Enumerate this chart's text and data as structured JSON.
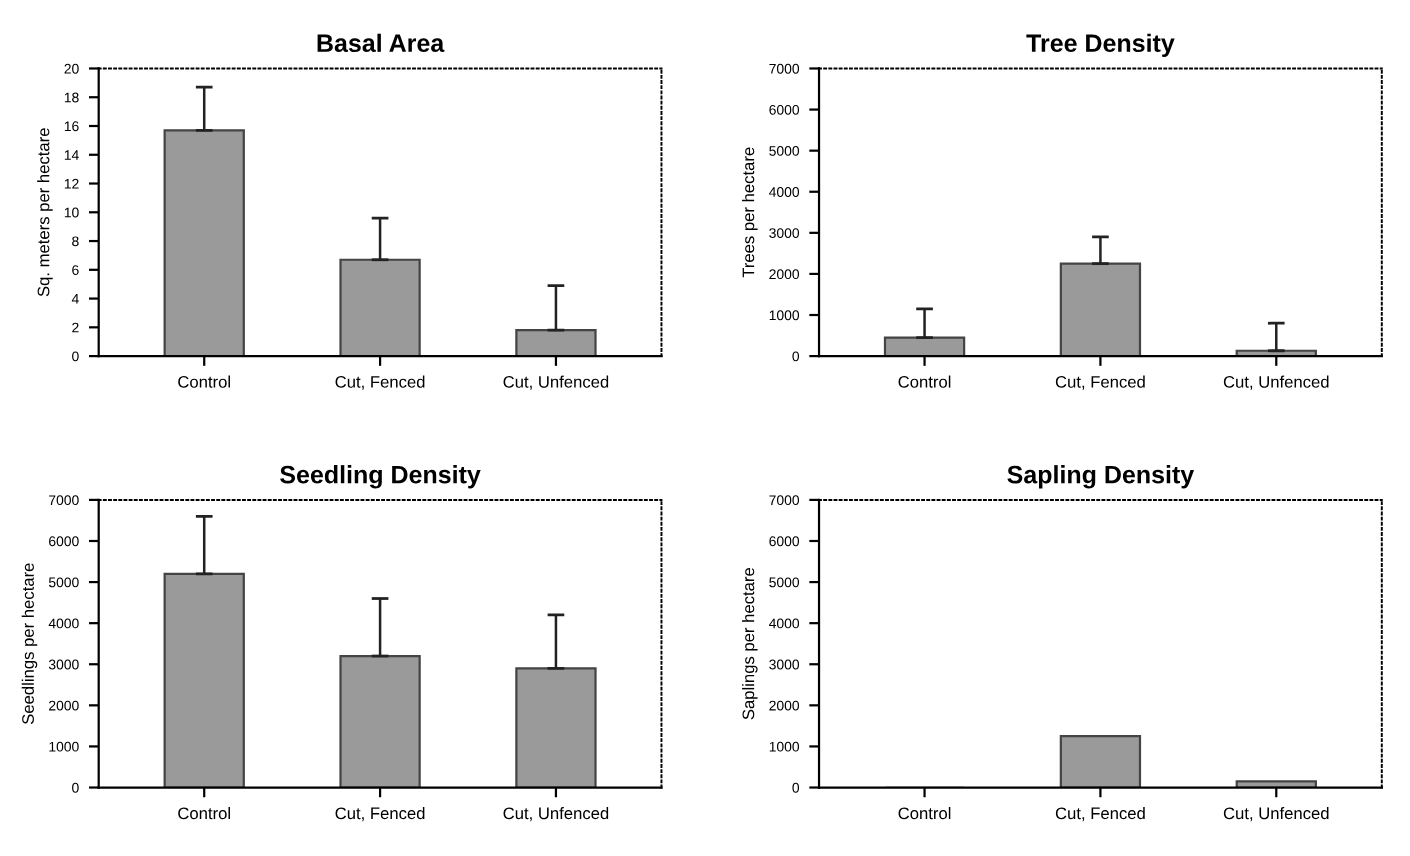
{
  "chart_data": [
    {
      "type": "bar",
      "title": "Basal Area",
      "ylabel": "Sq. meters per hectare",
      "categories": [
        "Control",
        "Cut, Fenced",
        "Cut, Unfenced"
      ],
      "values": [
        15.7,
        6.7,
        1.8
      ],
      "errors": [
        [
          15.7,
          18.7
        ],
        [
          6.7,
          9.6
        ],
        [
          1.8,
          4.9
        ]
      ],
      "color": "#9a9a9a",
      "ylim": [
        0,
        20
      ],
      "yticks": [
        0,
        2,
        4,
        6,
        8,
        10,
        12,
        14,
        16,
        18,
        20
      ]
    },
    {
      "type": "bar",
      "title": "Tree Density",
      "ylabel": "Trees per hectare",
      "categories": [
        "Control",
        "Cut, Fenced",
        "Cut, Unfenced"
      ],
      "values": [
        450,
        2250,
        130
      ],
      "errors": [
        [
          450,
          1150
        ],
        [
          2250,
          2900
        ],
        [
          130,
          800
        ]
      ],
      "color": "#9a9a9a",
      "ylim": [
        0,
        7000
      ],
      "yticks": [
        0,
        1000,
        2000,
        3000,
        4000,
        5000,
        6000,
        7000
      ]
    },
    {
      "type": "bar",
      "title": "Seedling Density",
      "ylabel": "Seedlings per hectare",
      "categories": [
        "Control",
        "Cut, Fenced",
        "Cut, Unfenced"
      ],
      "values": [
        5200,
        3200,
        2900
      ],
      "errors": [
        [
          5200,
          6600
        ],
        [
          3200,
          4600
        ],
        [
          2900,
          4200
        ]
      ],
      "color": "#9a9a9a",
      "ylim": [
        0,
        7000
      ],
      "yticks": [
        0,
        1000,
        2000,
        3000,
        4000,
        5000,
        6000,
        7000
      ]
    },
    {
      "type": "bar",
      "title": "Sapling Density",
      "ylabel": "Saplings per hectare",
      "categories": [
        "Control",
        "Cut, Fenced",
        "Cut, Unfenced"
      ],
      "values": [
        0,
        1250,
        150
      ],
      "color": "#9a9a9a",
      "ylim": [
        0,
        7000
      ],
      "yticks": [
        0,
        1000,
        2000,
        3000,
        4000,
        5000,
        6000,
        7000
      ]
    }
  ]
}
